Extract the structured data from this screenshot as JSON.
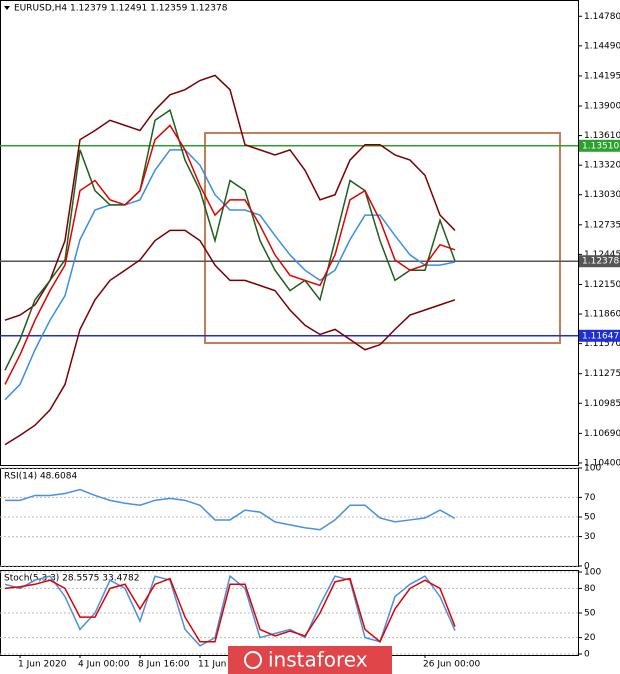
{
  "watermark": "instaforex",
  "chart_data": [
    {
      "type": "line",
      "title": "EURUSD,H4  1.12379 1.12491 1.12359 1.12378",
      "ylim": [
        1.1038,
        1.1491
      ],
      "yticks": [
        {
          "value": 1.1478,
          "label": "1.14780"
        },
        {
          "value": 1.1449,
          "label": "1.14490"
        },
        {
          "value": 1.14195,
          "label": "1.14195"
        },
        {
          "value": 1.139,
          "label": "1.13900"
        },
        {
          "value": 1.1361,
          "label": "1.13610"
        },
        {
          "value": 1.1332,
          "label": "1.13320"
        },
        {
          "value": 1.1303,
          "label": "1.13030"
        },
        {
          "value": 1.12735,
          "label": "1.12735"
        },
        {
          "value": 1.12445,
          "label": "1.12445"
        },
        {
          "value": 1.1215,
          "label": "1.12150"
        },
        {
          "value": 1.1186,
          "label": "1.11860"
        },
        {
          "value": 1.1157,
          "label": "1.11570"
        },
        {
          "value": 1.11275,
          "label": "1.11275"
        },
        {
          "value": 1.10985,
          "label": "1.10985"
        },
        {
          "value": 1.1069,
          "label": "1.10690"
        },
        {
          "value": 1.104,
          "label": "1.10400"
        }
      ],
      "levels": [
        {
          "value": 1.1351,
          "label": "1.13510",
          "color": "#2ca02c"
        },
        {
          "value": 1.11647,
          "label": "1.11647",
          "color": "#1f2fd6"
        },
        {
          "value": 1.12378,
          "label": "1.12378",
          "color": "#555555"
        }
      ],
      "series": [
        {
          "color": "#7a0000",
          "values": [
            1.118,
            1.1185,
            1.1195,
            1.1219,
            1.1258,
            1.1357,
            1.1366,
            1.1376,
            1.1371,
            1.1366,
            1.1386,
            1.1401,
            1.1406,
            1.1415,
            1.142,
            1.1406,
            1.1352,
            1.1347,
            1.1342,
            1.1347,
            1.1327,
            1.1298,
            1.1303,
            1.1337,
            1.1352,
            1.1352,
            1.1342,
            1.1337,
            1.1322,
            1.1283,
            1.1268
          ]
        },
        {
          "color": "#7a0000",
          "values": [
            1.1058,
            1.1067,
            1.1077,
            1.1092,
            1.1117,
            1.1171,
            1.12,
            1.1219,
            1.1229,
            1.1239,
            1.1258,
            1.1268,
            1.1268,
            1.1258,
            1.1234,
            1.1219,
            1.1219,
            1.1214,
            1.1209,
            1.119,
            1.1175,
            1.1166,
            1.1171,
            1.1161,
            1.1151,
            1.1156,
            1.1171,
            1.1185,
            1.119,
            1.1195,
            1.12
          ]
        },
        {
          "color": "#3a8ee6",
          "values": [
            1.1102,
            1.1117,
            1.1151,
            1.118,
            1.1204,
            1.1259,
            1.1288,
            1.1293,
            1.1293,
            1.1298,
            1.1327,
            1.1347,
            1.1347,
            1.1332,
            1.1303,
            1.1288,
            1.1288,
            1.1283,
            1.1263,
            1.1244,
            1.1229,
            1.1219,
            1.1229,
            1.1259,
            1.1283,
            1.1283,
            1.1263,
            1.1244,
            1.1234,
            1.1234,
            1.1237
          ]
        },
        {
          "color": "#1e5e1e",
          "values": [
            1.1131,
            1.1161,
            1.12,
            1.1219,
            1.1239,
            1.1347,
            1.1307,
            1.1293,
            1.1293,
            1.1307,
            1.1376,
            1.1386,
            1.1337,
            1.1307,
            1.1258,
            1.1317,
            1.1307,
            1.1258,
            1.1229,
            1.1209,
            1.1219,
            1.12,
            1.1258,
            1.1317,
            1.1307,
            1.1258,
            1.1219,
            1.1229,
            1.1229,
            1.1278,
            1.1238
          ]
        },
        {
          "color": "#e00000",
          "values": [
            1.1117,
            1.1146,
            1.118,
            1.1209,
            1.1234,
            1.1307,
            1.1317,
            1.1298,
            1.1293,
            1.1307,
            1.1357,
            1.1371,
            1.1347,
            1.1312,
            1.1283,
            1.1298,
            1.1298,
            1.1273,
            1.1244,
            1.1224,
            1.1219,
            1.1214,
            1.1244,
            1.1298,
            1.1307,
            1.1278,
            1.1239,
            1.1229,
            1.1234,
            1.1254,
            1.1249
          ]
        }
      ]
    },
    {
      "type": "line",
      "title": "RSI(14) 48.6084",
      "ylim": [
        0,
        100
      ],
      "yticks": [
        100,
        70,
        50,
        30,
        0
      ],
      "series": [
        {
          "color": "#4a8fe0",
          "values": [
            67,
            67,
            72,
            72,
            74,
            78,
            72,
            67,
            64,
            62,
            67,
            69,
            67,
            62,
            47,
            47,
            57,
            55,
            45,
            42,
            39,
            37,
            47,
            62,
            62,
            49,
            45,
            47,
            49,
            57,
            48.6084
          ]
        }
      ]
    },
    {
      "type": "line",
      "title": "Stoch(5,3,3) 28.5575 33.4782",
      "ylim": [
        0,
        100
      ],
      "yticks": [
        100,
        80,
        50,
        20,
        0
      ],
      "categories": [
        null,
        "1 Jun 2020",
        null,
        null,
        null,
        "4 Jun 00:00",
        null,
        null,
        null,
        "8 Jun 16:00",
        null,
        null,
        null,
        "11 Jun 08:00",
        null,
        null,
        null,
        null,
        null,
        null,
        null,
        null,
        null,
        null,
        null,
        null,
        null,
        null,
        "26 Jun 00:00",
        null,
        null
      ],
      "series": [
        {
          "color": "#4a8fe0",
          "values": [
            85,
            80,
            90,
            95,
            70,
            30,
            50,
            90,
            80,
            40,
            95,
            90,
            30,
            10,
            20,
            95,
            80,
            20,
            25,
            30,
            20,
            60,
            95,
            90,
            20,
            15,
            70,
            85,
            95,
            70,
            28.5575
          ]
        },
        {
          "color": "#e00000",
          "values": [
            80,
            82,
            85,
            90,
            80,
            45,
            45,
            80,
            85,
            55,
            85,
            92,
            45,
            15,
            15,
            85,
            85,
            30,
            22,
            28,
            22,
            50,
            88,
            92,
            30,
            15,
            55,
            80,
            90,
            80,
            33.4782
          ]
        }
      ]
    }
  ]
}
